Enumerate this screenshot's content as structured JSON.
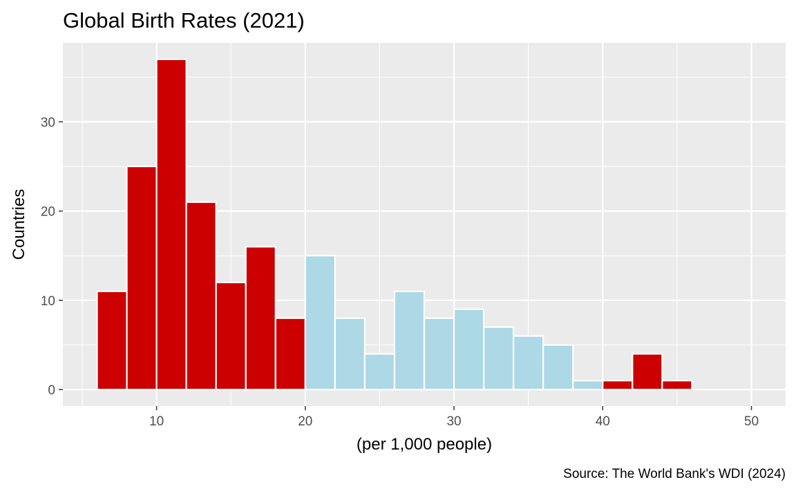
{
  "chart_data": {
    "type": "bar",
    "title": "Global Birth Rates (2021)",
    "xlabel": "(per 1,000 people)",
    "ylabel": "Countries",
    "caption": "Source: The World Bank's WDI (2024)",
    "bin_width": 2,
    "bins": [
      {
        "start": 6,
        "end": 8,
        "count": 11,
        "group": "red"
      },
      {
        "start": 8,
        "end": 10,
        "count": 25,
        "group": "red"
      },
      {
        "start": 10,
        "end": 12,
        "count": 37,
        "group": "red"
      },
      {
        "start": 12,
        "end": 14,
        "count": 21,
        "group": "red"
      },
      {
        "start": 14,
        "end": 16,
        "count": 12,
        "group": "red"
      },
      {
        "start": 16,
        "end": 18,
        "count": 16,
        "group": "red"
      },
      {
        "start": 18,
        "end": 20,
        "count": 8,
        "group": "red"
      },
      {
        "start": 20,
        "end": 22,
        "count": 15,
        "group": "blue"
      },
      {
        "start": 22,
        "end": 24,
        "count": 8,
        "group": "blue"
      },
      {
        "start": 24,
        "end": 26,
        "count": 4,
        "group": "blue"
      },
      {
        "start": 26,
        "end": 28,
        "count": 11,
        "group": "blue"
      },
      {
        "start": 28,
        "end": 30,
        "count": 8,
        "group": "blue"
      },
      {
        "start": 30,
        "end": 32,
        "count": 9,
        "group": "blue"
      },
      {
        "start": 32,
        "end": 34,
        "count": 7,
        "group": "blue"
      },
      {
        "start": 34,
        "end": 36,
        "count": 6,
        "group": "blue"
      },
      {
        "start": 36,
        "end": 38,
        "count": 5,
        "group": "blue"
      },
      {
        "start": 38,
        "end": 40,
        "count": 1,
        "group": "blue"
      },
      {
        "start": 40,
        "end": 42,
        "count": 1,
        "group": "red"
      },
      {
        "start": 42,
        "end": 44,
        "count": 4,
        "group": "red"
      },
      {
        "start": 44,
        "end": 46,
        "count": 1,
        "group": "red"
      }
    ],
    "xlim": [
      3.7,
      52.3
    ],
    "ylim": [
      -1.85,
      38.85
    ],
    "x_ticks": [
      10,
      20,
      30,
      40,
      50
    ],
    "y_ticks": [
      0,
      10,
      20,
      30
    ],
    "grid": true,
    "legend": "none",
    "colors": {
      "red": "#cc0000",
      "blue": "#add8e6",
      "panel": "#ebebeb",
      "grid": "#ffffff",
      "bar_outline": "#ffffff"
    }
  }
}
